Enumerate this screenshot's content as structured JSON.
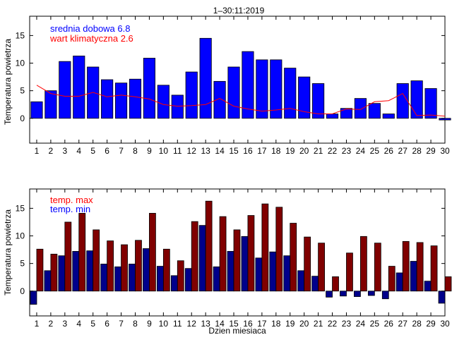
{
  "figure_title": "1–30:11:2019",
  "chart_data": [
    {
      "type": "bar+line",
      "title": "",
      "xlabel": "",
      "ylabel": "Temperatura powietrza",
      "xlim": [
        0.5,
        30
      ],
      "ylim": [
        -4.5,
        18.5
      ],
      "grid": false,
      "yticks": [
        0,
        5,
        10,
        15
      ],
      "x": [
        1,
        2,
        3,
        4,
        5,
        6,
        7,
        8,
        9,
        10,
        11,
        12,
        13,
        14,
        15,
        16,
        17,
        18,
        19,
        20,
        21,
        22,
        23,
        24,
        25,
        26,
        27,
        28,
        29,
        30
      ],
      "legend": [
        {
          "label": "srednia dobowa 6.8",
          "color": "#0000ff"
        },
        {
          "label": "wart klimatyczna 2.6",
          "color": "#ff0000"
        }
      ],
      "series": [
        {
          "name": "srednia dobowa",
          "kind": "bar",
          "color": "#0000ff",
          "values": [
            3.0,
            5.0,
            10.3,
            11.3,
            9.3,
            7.0,
            6.4,
            7.1,
            10.9,
            6.0,
            4.2,
            8.4,
            14.5,
            6.7,
            9.3,
            12.1,
            10.6,
            10.6,
            9.1,
            7.5,
            6.3,
            0.8,
            1.8,
            3.6,
            2.7,
            0.8,
            6.3,
            6.8,
            5.4,
            -0.3
          ]
        },
        {
          "name": "wart klimatyczna",
          "kind": "line",
          "color": "#ff0000",
          "values": [
            6.0,
            4.5,
            4.0,
            4.0,
            4.7,
            3.9,
            4.2,
            3.9,
            3.5,
            2.5,
            2.2,
            2.3,
            2.5,
            3.6,
            2.2,
            1.7,
            1.3,
            1.5,
            1.8,
            1.2,
            0.8,
            0.8,
            1.7,
            1.6,
            3.0,
            3.2,
            4.5,
            0.5,
            0.6,
            0.4
          ]
        }
      ]
    },
    {
      "type": "bar",
      "title": "",
      "xlabel": "Dzien miesiaca",
      "ylabel": "Temperatura powietrza",
      "xlim": [
        0.5,
        30
      ],
      "ylim": [
        -4.5,
        18.5
      ],
      "grid": false,
      "yticks": [
        0,
        5,
        10,
        15
      ],
      "x": [
        1,
        2,
        3,
        4,
        5,
        6,
        7,
        8,
        9,
        10,
        11,
        12,
        13,
        14,
        15,
        16,
        17,
        18,
        19,
        20,
        21,
        22,
        23,
        24,
        25,
        26,
        27,
        28,
        29,
        30
      ],
      "legend": [
        {
          "label": "temp. max",
          "color": "#ff0000"
        },
        {
          "label": "temp. min",
          "color": "#0000ff"
        }
      ],
      "series": [
        {
          "name": "temp. min",
          "kind": "bar",
          "color": "#00008b",
          "values": [
            -2.4,
            3.7,
            6.4,
            7.2,
            7.3,
            4.9,
            4.4,
            4.9,
            7.7,
            4.5,
            2.8,
            4.1,
            11.9,
            4.4,
            7.2,
            9.9,
            6.0,
            7.1,
            6.4,
            3.7,
            2.7,
            -1.1,
            -0.9,
            -1.0,
            -0.8,
            -1.4,
            3.3,
            5.4,
            1.8,
            -2.2
          ]
        },
        {
          "name": "temp. max",
          "kind": "bar",
          "color": "#800000",
          "values": [
            7.6,
            6.7,
            12.5,
            14.1,
            11.1,
            9.1,
            8.4,
            9.2,
            14.1,
            7.6,
            5.5,
            12.6,
            16.3,
            13.5,
            11.1,
            13.7,
            15.8,
            15.2,
            12.3,
            9.8,
            8.7,
            2.6,
            6.9,
            9.9,
            8.7,
            4.5,
            9.0,
            8.8,
            8.2,
            2.6
          ]
        }
      ]
    }
  ]
}
